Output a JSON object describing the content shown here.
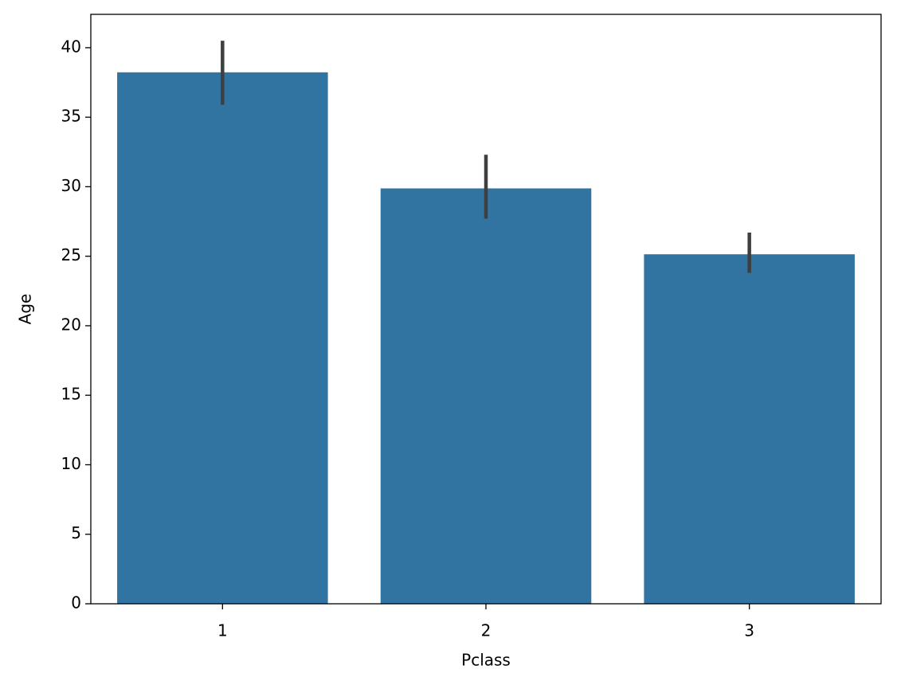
{
  "chart_data": {
    "type": "bar",
    "xlabel": "Pclass",
    "ylabel": "Age",
    "categories": [
      "1",
      "2",
      "3"
    ],
    "values": [
      38.23,
      29.88,
      25.14
    ],
    "ci_low": [
      35.9,
      27.7,
      23.8
    ],
    "ci_high": [
      40.5,
      32.3,
      26.7
    ],
    "color": "#3274a1",
    "errcolor": "#3f3f3f",
    "ylim": [
      0,
      42.4
    ],
    "yticks": [
      0,
      5,
      10,
      15,
      20,
      25,
      30,
      35,
      40
    ],
    "grid": false
  }
}
